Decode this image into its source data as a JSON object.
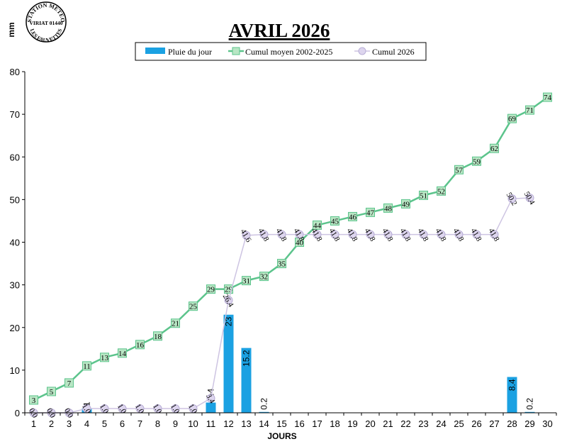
{
  "station_logo": {
    "line1": "STATION METEO",
    "line2": "VIRIAT 01440",
    "line3": "LES FAUVETTES"
  },
  "colors": {
    "bar": "#1ba1e2",
    "cumul_moyen_line": "#5cc48c",
    "cumul_moyen_marker": "#b8e6c4",
    "cumul_2026_line": "#cdc4e2",
    "cumul_2026_marker": "#ddd5ee"
  },
  "chart_data": {
    "type": "bar",
    "title": "AVRIL 2026",
    "ylabel": "mm",
    "xlabel": "JOURS",
    "ylim": [
      0,
      80
    ],
    "yticks": [
      0,
      10,
      20,
      30,
      40,
      50,
      60,
      70,
      80
    ],
    "legend_position": "top-center",
    "categories": [
      1,
      2,
      3,
      4,
      5,
      6,
      7,
      8,
      9,
      10,
      11,
      12,
      13,
      14,
      15,
      16,
      17,
      18,
      19,
      20,
      21,
      22,
      23,
      24,
      25,
      26,
      27,
      28,
      29,
      30
    ],
    "series": [
      {
        "name": "Pluie du jour",
        "type": "bar",
        "values": [
          0,
          0,
          0,
          1,
          0,
          0,
          0,
          0,
          0,
          0,
          2.4,
          23,
          15.2,
          0.2,
          0,
          0,
          0,
          0,
          0,
          0,
          0,
          0,
          0,
          0,
          0,
          0,
          0,
          8.4,
          0.2,
          null
        ],
        "labels": [
          "",
          "",
          "",
          "1",
          "",
          "",
          "",
          "",
          "",
          "",
          "2.4",
          "23",
          "15.2",
          "0.2",
          "",
          "",
          "",
          "",
          "",
          "",
          "",
          "",
          "",
          "",
          "",
          "",
          "",
          "8.4",
          "0.2",
          ""
        ]
      },
      {
        "name": "Cumul moyen 2002-2025",
        "type": "line",
        "values": [
          3,
          5,
          7,
          11,
          13,
          14,
          16,
          18,
          21,
          25,
          29,
          29,
          31,
          32,
          35,
          40,
          44,
          45,
          46,
          47,
          48,
          49,
          51,
          52,
          57,
          59,
          62,
          69,
          71,
          74
        ],
        "labels": [
          "3",
          "5",
          "7",
          "11",
          "13",
          "14",
          "16",
          "18",
          "21",
          "25",
          "29",
          "29",
          "31",
          "32",
          "35",
          "40",
          "44",
          "45",
          "46",
          "47",
          "48",
          "49",
          "51",
          "52",
          "57",
          "59",
          "62",
          "69",
          "71",
          "74"
        ]
      },
      {
        "name": "Cumul 2026",
        "type": "line",
        "values": [
          0,
          0,
          0,
          1,
          1,
          1,
          1,
          1,
          1,
          1,
          3.4,
          26.4,
          41.6,
          41.8,
          41.8,
          41.8,
          41.8,
          41.8,
          41.8,
          41.8,
          41.8,
          41.8,
          41.8,
          41.8,
          41.8,
          41.8,
          41.8,
          50.2,
          50.4,
          null
        ],
        "labels": [
          "0.0",
          "0.0",
          "0.0",
          "1.0",
          "1.0",
          "1.0",
          "1.0",
          "1.0",
          "1.0",
          "1.0",
          "3.4",
          "26.4",
          "41.6",
          "41.8",
          "41.8",
          "41.8",
          "41.8",
          "41.8",
          "41.8",
          "41.8",
          "41.8",
          "41.8",
          "41.8",
          "41.8",
          "41.8",
          "41.8",
          "41.8",
          "50.2",
          "50.4",
          ""
        ]
      }
    ]
  }
}
